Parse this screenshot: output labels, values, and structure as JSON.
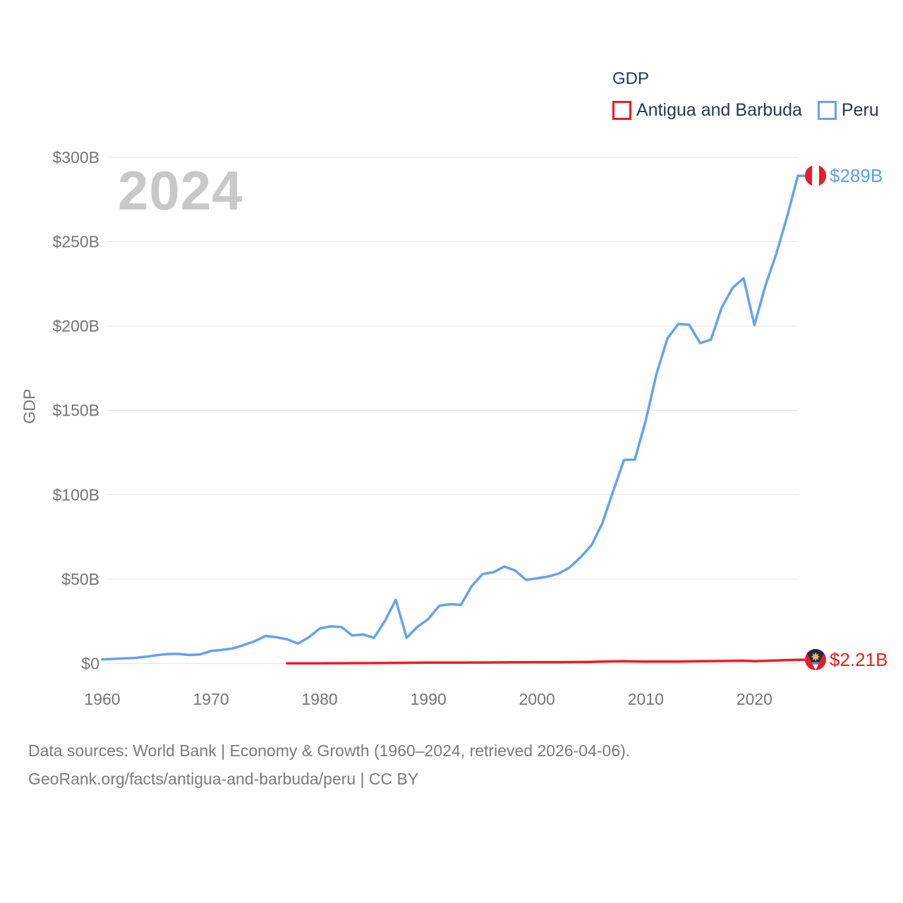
{
  "legend": {
    "title": "GDP",
    "items": [
      {
        "label": "Antigua and Barbuda",
        "color": "#ed1c24"
      },
      {
        "label": "Peru",
        "color": "#64a3e9"
      }
    ]
  },
  "watermark": "2024",
  "y_axis": {
    "title": "GDP",
    "ticks": [
      "$0",
      "$50B",
      "$100B",
      "$150B",
      "$200B",
      "$250B",
      "$300B"
    ]
  },
  "x_axis": {
    "ticks": [
      "1960",
      "1970",
      "1980",
      "1990",
      "2000",
      "2010",
      "2020"
    ]
  },
  "footer": {
    "line1": "Data sources: World Bank | Economy & Growth (1960–2024, retrieved 2026-04-06).",
    "line2": "GeoRank.org/facts/antigua-and-barbuda/peru | CC BY"
  },
  "chart_data": {
    "type": "line",
    "title": "GDP",
    "ylabel": "GDP",
    "unit": "billions USD",
    "ylim": [
      0,
      300
    ],
    "xlim": [
      1960,
      2024
    ],
    "grid": "horizontal",
    "legend_position": "top-right",
    "series": [
      {
        "name": "Antigua and Barbuda",
        "color": "#ed1c24",
        "end_label": "$2.21B",
        "start_year": 1977,
        "values": [
          0.07,
          0.08,
          0.1,
          0.13,
          0.15,
          0.17,
          0.19,
          0.22,
          0.26,
          0.31,
          0.36,
          0.42,
          0.46,
          0.49,
          0.5,
          0.51,
          0.54,
          0.59,
          0.58,
          0.63,
          0.68,
          0.71,
          0.74,
          0.8,
          0.78,
          0.78,
          0.82,
          0.88,
          0.97,
          1.11,
          1.26,
          1.32,
          1.2,
          1.13,
          1.13,
          1.19,
          1.18,
          1.25,
          1.34,
          1.44,
          1.47,
          1.58,
          1.66,
          1.37,
          1.56,
          1.77,
          2.03,
          2.21
        ]
      },
      {
        "name": "Peru",
        "color": "#64a3e9",
        "end_label": "$289B",
        "start_year": 1960,
        "values": [
          2.4,
          2.7,
          3.0,
          3.3,
          4.0,
          4.9,
          5.6,
          5.7,
          5.0,
          5.4,
          7.4,
          8.1,
          8.9,
          10.9,
          13.1,
          16.3,
          15.6,
          14.4,
          11.8,
          15.5,
          20.7,
          22.0,
          21.6,
          16.6,
          17.2,
          15.2,
          25.2,
          37.7,
          15.2,
          21.8,
          26.4,
          34.2,
          35.1,
          34.8,
          46.0,
          53.0,
          54.1,
          57.5,
          55.0,
          49.5,
          50.5,
          51.5,
          53.3,
          56.9,
          63.0,
          70.0,
          83.0,
          102.0,
          120.6,
          120.8,
          144.0,
          171.8,
          192.6,
          201.2,
          200.8,
          189.9,
          191.9,
          211.0,
          222.6,
          228.3,
          200.5,
          223.7,
          242.6,
          264.6,
          289.0
        ]
      }
    ]
  }
}
